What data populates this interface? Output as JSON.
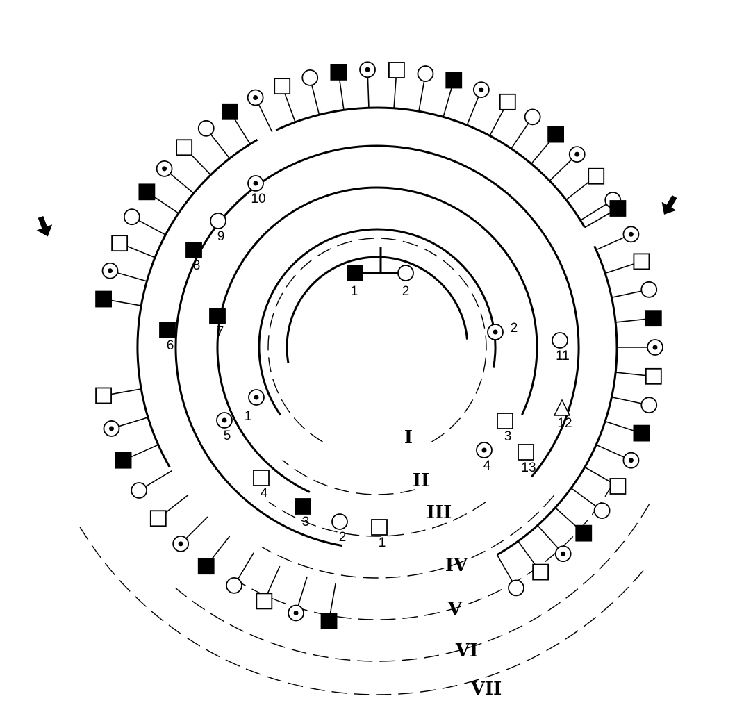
{
  "generation_labels": [
    "I",
    "II",
    "III",
    "IV",
    "V",
    "VI",
    "VII"
  ],
  "generation_I": [
    {
      "id": "I-1",
      "label": "1",
      "sex": "male",
      "status": "affected"
    },
    {
      "id": "I-2",
      "label": "2",
      "sex": "female",
      "status": "unaffected"
    }
  ],
  "generation_II": [
    {
      "id": "II-1",
      "label": "1",
      "sex": "female",
      "status": "carrier"
    },
    {
      "id": "II-2",
      "label": "2",
      "sex": "female",
      "status": "carrier"
    }
  ],
  "generation_III": [
    {
      "id": "III-1",
      "label": "1",
      "sex": "male",
      "status": "unaffected"
    },
    {
      "id": "III-2",
      "label": "2",
      "sex": "female",
      "status": "unaffected"
    },
    {
      "id": "III-3",
      "label": "3",
      "sex": "male",
      "status": "affected"
    },
    {
      "id": "III-4",
      "label": "4",
      "sex": "male",
      "status": "unaffected"
    },
    {
      "id": "III-5",
      "label": "5",
      "sex": "female",
      "status": "carrier"
    },
    {
      "id": "III-6",
      "label": "6",
      "sex": "male",
      "status": "affected"
    },
    {
      "id": "III-7",
      "label": "7",
      "sex": "male",
      "status": "affected"
    },
    {
      "id": "III-8",
      "label": "8",
      "sex": "male",
      "status": "affected"
    },
    {
      "id": "III-9",
      "label": "9",
      "sex": "female",
      "status": "unaffected"
    },
    {
      "id": "III-10",
      "label": "10",
      "sex": "female",
      "status": "carrier"
    },
    {
      "id": "III-11",
      "label": "11",
      "sex": "female",
      "status": "unaffected"
    },
    {
      "id": "III-12",
      "label": "12",
      "sex": "unknown",
      "status": "unaffected"
    },
    {
      "id": "III-13",
      "label": "13",
      "sex": "male",
      "status": "unaffected"
    },
    {
      "id": "III-3b",
      "label": "3",
      "sex": "male",
      "status": "unaffected"
    },
    {
      "id": "III-4b",
      "label": "4",
      "sex": "female",
      "status": "carrier"
    }
  ],
  "arrows": [
    {
      "target": "VI-9"
    },
    {
      "target": "VI-28"
    }
  ]
}
